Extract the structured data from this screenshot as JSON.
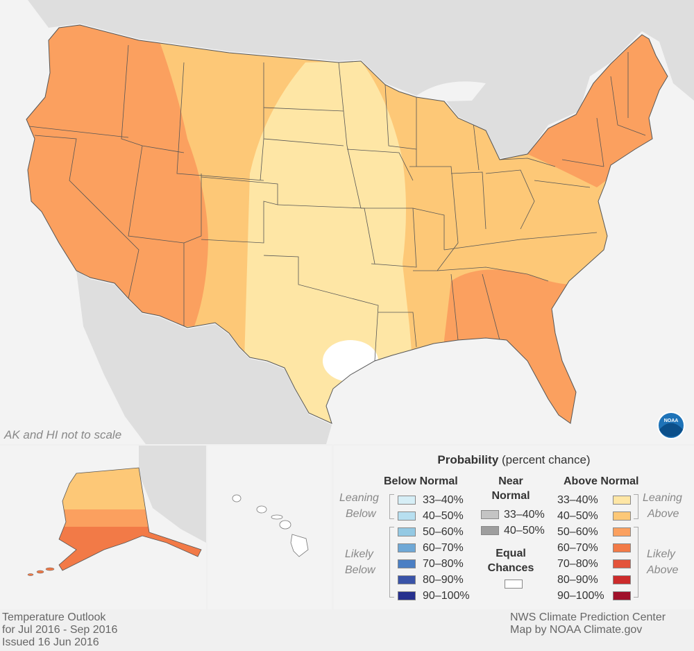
{
  "map": {
    "note": "AK and HI not to scale",
    "logo_text": "NOAA"
  },
  "legend": {
    "title_bold": "Probability",
    "title_rest": " (percent chance)",
    "below_header": "Below Normal",
    "near_header_1": "Near",
    "near_header_2": "Normal",
    "above_header": "Above Normal",
    "leaning_1": "Leaning",
    "below_word": "Below",
    "likely_1": "Likely",
    "above_word": "Above",
    "equal_1": "Equal",
    "equal_2": "Chances",
    "below_bins": [
      "33–40%",
      "40–50%",
      "50–60%",
      "60–70%",
      "70–80%",
      "80–90%",
      "90–100%"
    ],
    "near_bins": [
      "33–40%",
      "40–50%"
    ],
    "above_bins": [
      "33–40%",
      "40–50%",
      "50–60%",
      "60–70%",
      "70–80%",
      "80–90%",
      "90–100%"
    ],
    "colors": {
      "below": [
        "#d6eef6",
        "#b7dff0",
        "#94c9e3",
        "#6fa8d6",
        "#4b7fc4",
        "#3953a8",
        "#26308e"
      ],
      "near": [
        "#c4c4c4",
        "#9e9e9e"
      ],
      "above": [
        "#fee6a5",
        "#fdc877",
        "#fba05f",
        "#f27a47",
        "#e4533a",
        "#cc2b2b",
        "#a0112a"
      ],
      "equal": "#ffffff"
    }
  },
  "footer": {
    "left_1": "Temperature Outlook",
    "left_2": "for Jul 2016 - Sep 2016",
    "left_3": "Issued 16 Jun 2016",
    "right_1": "NWS Climate Prediction Center",
    "right_2": "Map by NOAA Climate.gov"
  }
}
